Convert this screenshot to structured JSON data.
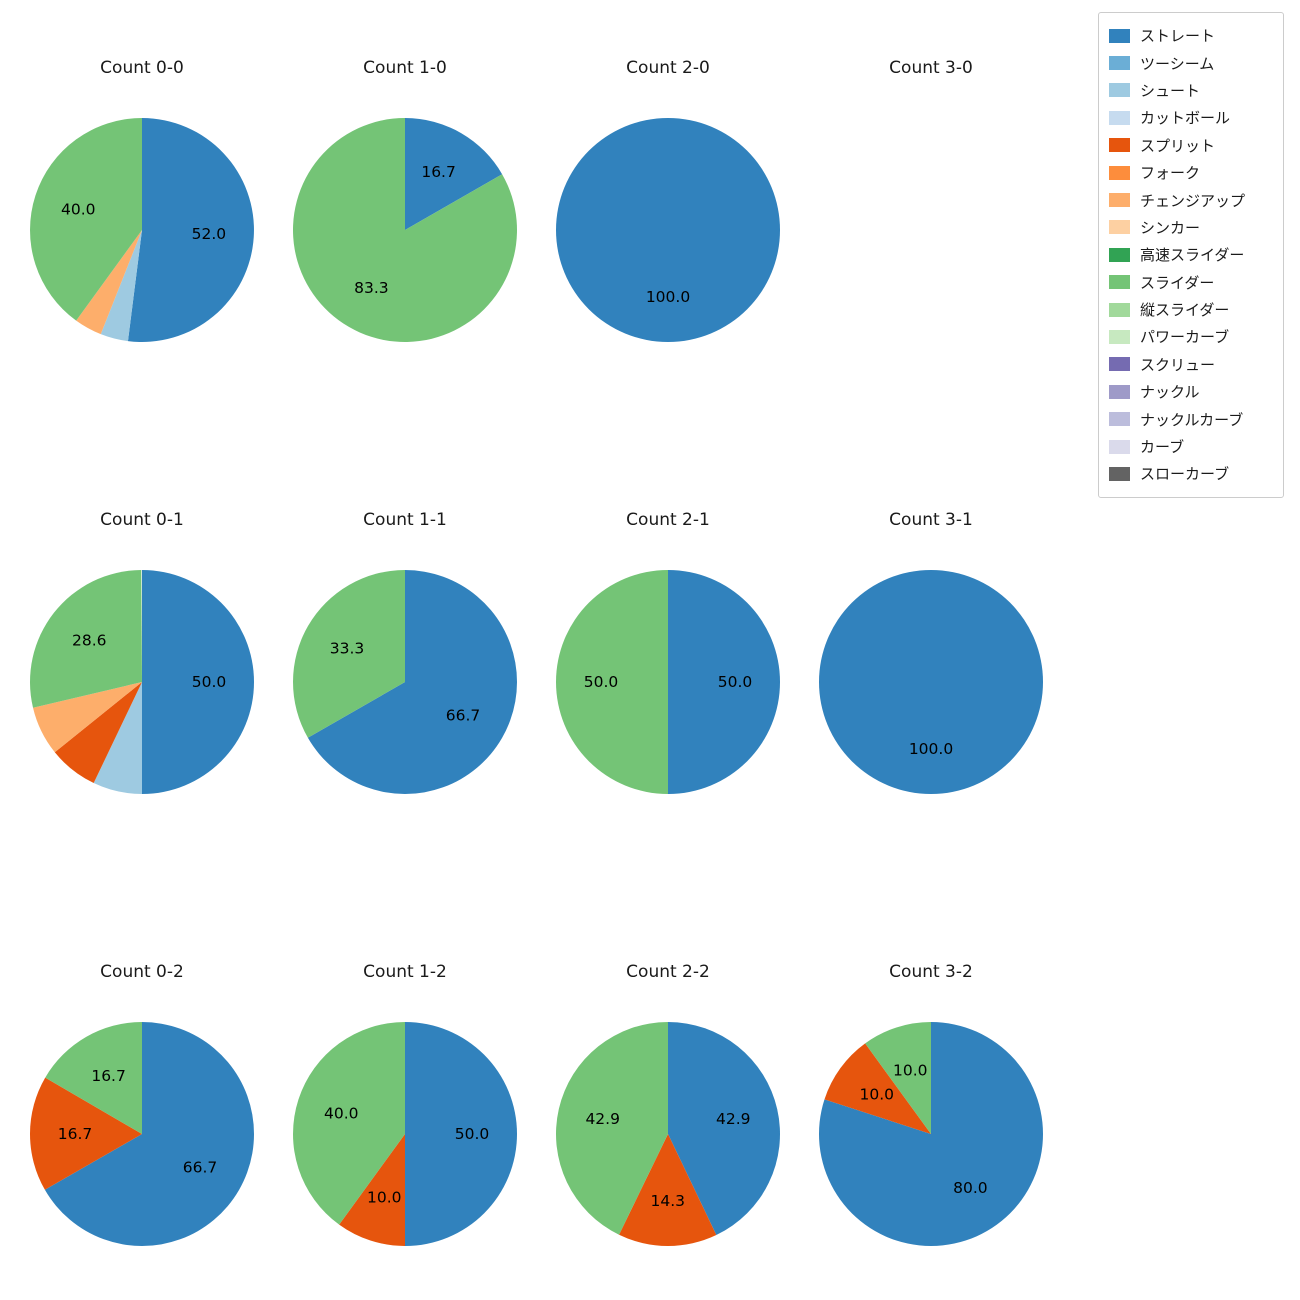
{
  "page": {
    "background": "#ffffff"
  },
  "legend": {
    "items": [
      {
        "label": "ストレート",
        "color": "#3182bd"
      },
      {
        "label": "ツーシーム",
        "color": "#6baed6"
      },
      {
        "label": "シュート",
        "color": "#9ecae1"
      },
      {
        "label": "カットボール",
        "color": "#c6dbef"
      },
      {
        "label": "スプリット",
        "color": "#e6550d"
      },
      {
        "label": "フォーク",
        "color": "#fd8d3c"
      },
      {
        "label": "チェンジアップ",
        "color": "#fdae6b"
      },
      {
        "label": "シンカー",
        "color": "#fdd0a2"
      },
      {
        "label": "高速スライダー",
        "color": "#31a354"
      },
      {
        "label": "スライダー",
        "color": "#74c476"
      },
      {
        "label": "縦スライダー",
        "color": "#a1d99b"
      },
      {
        "label": "パワーカーブ",
        "color": "#c7e9c0"
      },
      {
        "label": "スクリュー",
        "color": "#756bb1"
      },
      {
        "label": "ナックル",
        "color": "#9e9ac8"
      },
      {
        "label": "ナックルカーブ",
        "color": "#bcbddc"
      },
      {
        "label": "カーブ",
        "color": "#dadaeb"
      },
      {
        "label": "スローカーブ",
        "color": "#636363"
      }
    ]
  },
  "chart_data": [
    {
      "type": "pie",
      "title": "Count 0-0",
      "slices": [
        {
          "name": "ストレート",
          "pct": 52.0,
          "label": "52.0"
        },
        {
          "name": "シュート",
          "pct": 4.0,
          "label": ""
        },
        {
          "name": "チェンジアップ",
          "pct": 4.0,
          "label": ""
        },
        {
          "name": "スライダー",
          "pct": 40.0,
          "label": "40.0"
        }
      ]
    },
    {
      "type": "pie",
      "title": "Count 1-0",
      "slices": [
        {
          "name": "ストレート",
          "pct": 16.7,
          "label": "16.7"
        },
        {
          "name": "スライダー",
          "pct": 83.3,
          "label": "83.3"
        }
      ]
    },
    {
      "type": "pie",
      "title": "Count 2-0",
      "slices": [
        {
          "name": "ストレート",
          "pct": 100.0,
          "label": "100.0"
        }
      ]
    },
    {
      "type": "pie",
      "title": "Count 3-0",
      "slices": []
    },
    {
      "type": "pie",
      "title": "Count 0-1",
      "slices": [
        {
          "name": "ストレート",
          "pct": 50.0,
          "label": "50.0"
        },
        {
          "name": "シュート",
          "pct": 7.1,
          "label": ""
        },
        {
          "name": "スプリット",
          "pct": 7.1,
          "label": ""
        },
        {
          "name": "チェンジアップ",
          "pct": 7.1,
          "label": ""
        },
        {
          "name": "スライダー",
          "pct": 28.6,
          "label": "28.6"
        }
      ]
    },
    {
      "type": "pie",
      "title": "Count 1-1",
      "slices": [
        {
          "name": "ストレート",
          "pct": 66.7,
          "label": "66.7"
        },
        {
          "name": "スライダー",
          "pct": 33.3,
          "label": "33.3"
        }
      ]
    },
    {
      "type": "pie",
      "title": "Count 2-1",
      "slices": [
        {
          "name": "ストレート",
          "pct": 50.0,
          "label": "50.0"
        },
        {
          "name": "スライダー",
          "pct": 50.0,
          "label": "50.0"
        }
      ]
    },
    {
      "type": "pie",
      "title": "Count 3-1",
      "slices": [
        {
          "name": "ストレート",
          "pct": 100.0,
          "label": "100.0"
        }
      ]
    },
    {
      "type": "pie",
      "title": "Count 0-2",
      "slices": [
        {
          "name": "ストレート",
          "pct": 66.7,
          "label": "66.7"
        },
        {
          "name": "スプリット",
          "pct": 16.7,
          "label": "16.7"
        },
        {
          "name": "スライダー",
          "pct": 16.7,
          "label": "16.7"
        }
      ]
    },
    {
      "type": "pie",
      "title": "Count 1-2",
      "slices": [
        {
          "name": "ストレート",
          "pct": 50.0,
          "label": "50.0"
        },
        {
          "name": "スプリット",
          "pct": 10.0,
          "label": "10.0"
        },
        {
          "name": "スライダー",
          "pct": 40.0,
          "label": "40.0"
        }
      ]
    },
    {
      "type": "pie",
      "title": "Count 2-2",
      "slices": [
        {
          "name": "ストレート",
          "pct": 42.9,
          "label": "42.9"
        },
        {
          "name": "スプリット",
          "pct": 14.3,
          "label": "14.3"
        },
        {
          "name": "スライダー",
          "pct": 42.9,
          "label": "42.9"
        }
      ]
    },
    {
      "type": "pie",
      "title": "Count 3-2",
      "slices": [
        {
          "name": "ストレート",
          "pct": 80.0,
          "label": "80.0"
        },
        {
          "name": "スプリット",
          "pct": 10.0,
          "label": "10.0"
        },
        {
          "name": "スライダー",
          "pct": 10.0,
          "label": "10.0"
        }
      ]
    }
  ]
}
